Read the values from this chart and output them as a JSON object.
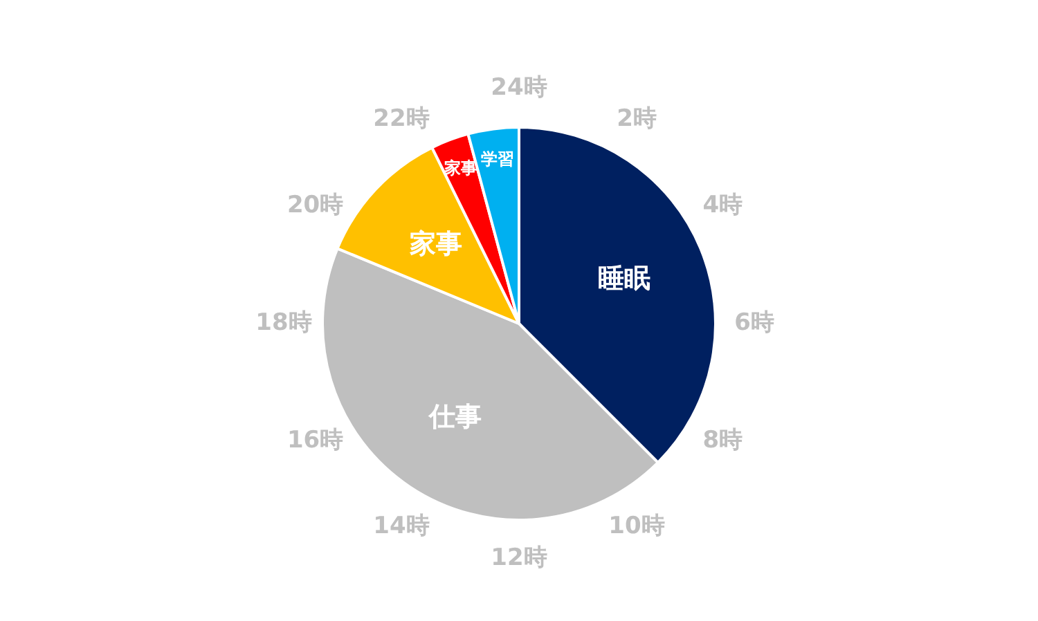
{
  "chart_data": {
    "type": "pie",
    "categories": [
      "睡眠",
      "仕事",
      "家事",
      "家事",
      "学習"
    ],
    "values": [
      37.5,
      43.75,
      11.45,
      3.13,
      4.17
    ],
    "colors": [
      "#002060",
      "#bfbfbf",
      "#ffc000",
      "#ff0000",
      "#00b0f0"
    ],
    "annotations": [
      "2時",
      "4時",
      "6時",
      "8時",
      "10時",
      "12時",
      "14時",
      "16時",
      "18時",
      "20時",
      "22時",
      "24時"
    ],
    "legend": false
  }
}
